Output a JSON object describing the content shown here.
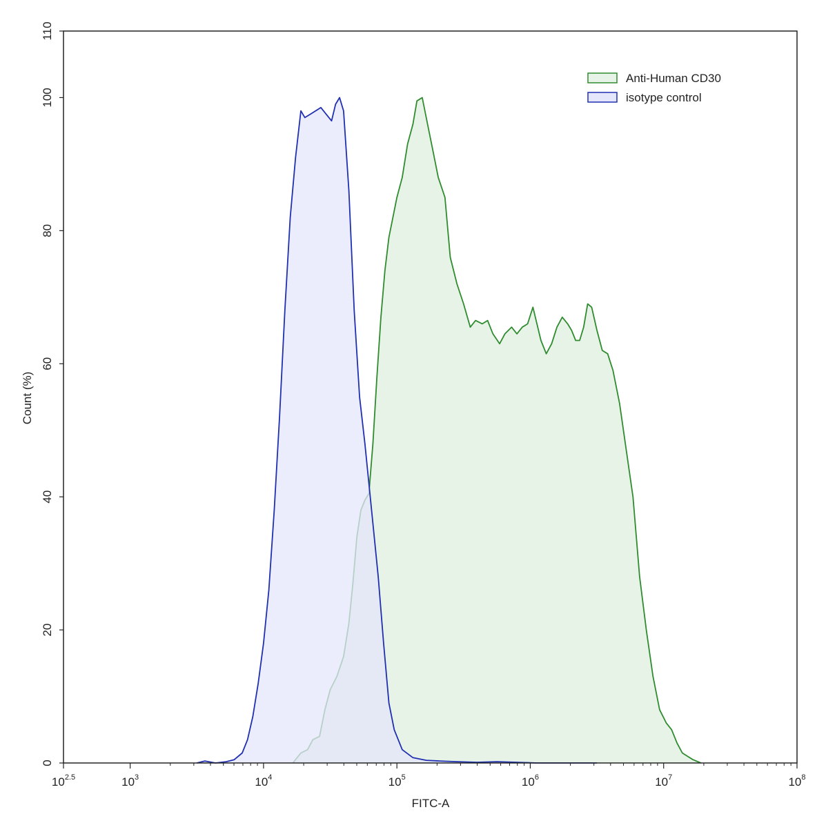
{
  "chart_data": {
    "type": "area",
    "xlabel": "FITC-A",
    "ylabel": "Count  (%)",
    "x_scale": "log10",
    "xlim": [
      2.5,
      8
    ],
    "ylim": [
      0,
      110
    ],
    "x_ticks": [
      {
        "base": "10",
        "exp": "2.5",
        "value": 2.5
      },
      {
        "base": "10",
        "exp": "3",
        "value": 3
      },
      {
        "base": "10",
        "exp": "4",
        "value": 4
      },
      {
        "base": "10",
        "exp": "5",
        "value": 5
      },
      {
        "base": "10",
        "exp": "6",
        "value": 6
      },
      {
        "base": "10",
        "exp": "7",
        "value": 7
      },
      {
        "base": "10",
        "exp": "8",
        "value": 8
      }
    ],
    "y_ticks": [
      "0",
      "20",
      "40",
      "60",
      "80",
      "100",
      "110"
    ],
    "y_tick_values": [
      0,
      20,
      40,
      60,
      80,
      100,
      110
    ],
    "grid": false,
    "legend_position": "top-right",
    "series": [
      {
        "name": "Anti-Human CD30",
        "color": "#2e8b2e",
        "fill": "#e6f3e6",
        "points": [
          [
            4.22,
            0
          ],
          [
            4.28,
            1.5
          ],
          [
            4.33,
            2
          ],
          [
            4.37,
            3.5
          ],
          [
            4.42,
            4
          ],
          [
            4.46,
            8
          ],
          [
            4.5,
            11
          ],
          [
            4.55,
            13
          ],
          [
            4.6,
            16
          ],
          [
            4.64,
            21
          ],
          [
            4.67,
            27
          ],
          [
            4.7,
            34
          ],
          [
            4.73,
            38
          ],
          [
            4.76,
            39.5
          ],
          [
            4.79,
            40.5
          ],
          [
            4.82,
            48
          ],
          [
            4.85,
            58
          ],
          [
            4.88,
            67
          ],
          [
            4.91,
            74
          ],
          [
            4.94,
            79
          ],
          [
            4.97,
            82
          ],
          [
            5.0,
            85
          ],
          [
            5.04,
            88
          ],
          [
            5.08,
            93
          ],
          [
            5.12,
            96
          ],
          [
            5.15,
            99.5
          ],
          [
            5.19,
            100
          ],
          [
            5.23,
            96
          ],
          [
            5.27,
            92
          ],
          [
            5.31,
            88
          ],
          [
            5.36,
            85
          ],
          [
            5.4,
            76
          ],
          [
            5.45,
            72
          ],
          [
            5.5,
            69
          ],
          [
            5.55,
            65.5
          ],
          [
            5.59,
            66.5
          ],
          [
            5.64,
            66
          ],
          [
            5.68,
            66.5
          ],
          [
            5.72,
            64.5
          ],
          [
            5.77,
            63
          ],
          [
            5.81,
            64.5
          ],
          [
            5.86,
            65.5
          ],
          [
            5.9,
            64.5
          ],
          [
            5.94,
            65.5
          ],
          [
            5.98,
            66
          ],
          [
            6.02,
            68.5
          ],
          [
            6.05,
            66
          ],
          [
            6.08,
            63.5
          ],
          [
            6.12,
            61.5
          ],
          [
            6.16,
            63
          ],
          [
            6.2,
            65.5
          ],
          [
            6.24,
            67
          ],
          [
            6.28,
            66
          ],
          [
            6.31,
            65
          ],
          [
            6.34,
            63.5
          ],
          [
            6.37,
            63.5
          ],
          [
            6.4,
            65.5
          ],
          [
            6.43,
            69
          ],
          [
            6.46,
            68.5
          ],
          [
            6.5,
            65
          ],
          [
            6.54,
            62
          ],
          [
            6.58,
            61.5
          ],
          [
            6.62,
            59
          ],
          [
            6.67,
            54
          ],
          [
            6.72,
            47
          ],
          [
            6.77,
            40
          ],
          [
            6.82,
            28
          ],
          [
            6.87,
            20
          ],
          [
            6.92,
            13
          ],
          [
            6.97,
            8
          ],
          [
            7.02,
            6
          ],
          [
            7.06,
            5
          ],
          [
            7.1,
            3
          ],
          [
            7.14,
            1.5
          ],
          [
            7.18,
            1
          ],
          [
            7.22,
            0.5
          ],
          [
            7.28,
            0
          ]
        ]
      },
      {
        "name": "isotype control",
        "color": "#1f2fb0",
        "fill": "#e4e6fb",
        "points": [
          [
            3.5,
            0
          ],
          [
            3.56,
            0.3
          ],
          [
            3.64,
            0
          ],
          [
            3.72,
            0.2
          ],
          [
            3.78,
            0.5
          ],
          [
            3.84,
            1.5
          ],
          [
            3.88,
            3.5
          ],
          [
            3.92,
            7
          ],
          [
            3.96,
            12
          ],
          [
            4.0,
            18
          ],
          [
            4.04,
            26
          ],
          [
            4.08,
            38
          ],
          [
            4.12,
            52
          ],
          [
            4.16,
            68
          ],
          [
            4.2,
            82
          ],
          [
            4.24,
            91
          ],
          [
            4.28,
            98
          ],
          [
            4.31,
            97
          ],
          [
            4.35,
            97.5
          ],
          [
            4.39,
            98
          ],
          [
            4.43,
            98.5
          ],
          [
            4.47,
            97.5
          ],
          [
            4.51,
            96.5
          ],
          [
            4.54,
            99
          ],
          [
            4.57,
            100
          ],
          [
            4.6,
            98
          ],
          [
            4.64,
            86
          ],
          [
            4.68,
            68
          ],
          [
            4.72,
            55
          ],
          [
            4.76,
            48
          ],
          [
            4.79,
            42
          ],
          [
            4.82,
            36
          ],
          [
            4.86,
            28
          ],
          [
            4.9,
            18
          ],
          [
            4.94,
            9
          ],
          [
            4.98,
            5
          ],
          [
            5.04,
            2
          ],
          [
            5.12,
            0.8
          ],
          [
            5.22,
            0.4
          ],
          [
            5.32,
            0.3
          ],
          [
            5.45,
            0.2
          ],
          [
            5.6,
            0.1
          ],
          [
            5.75,
            0.2
          ],
          [
            5.9,
            0.1
          ],
          [
            6.05,
            0
          ],
          [
            6.5,
            0
          ]
        ]
      }
    ]
  }
}
